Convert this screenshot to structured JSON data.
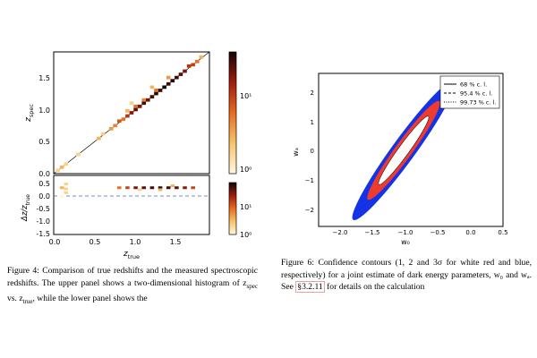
{
  "figure4": {
    "caption_label": "Figure 4:",
    "caption_text": "Comparison of true redshifts and the measured spectroscopic redshifts. The upper panel shows a two-dimensional histogram of z",
    "caption_spec_sub": "spec",
    "caption_text2": " vs. z",
    "caption_true_sub": "true",
    "caption_text3": ", while the lower panel shows the",
    "upper_ylabel_main": "z",
    "upper_ylabel_sub": "spec",
    "lower_ylabel": "Δz/z",
    "lower_ylabel_sub": "true",
    "xlabel_main": "z",
    "xlabel_sub": "true",
    "upper_yticks": [
      "0.0",
      "0.5",
      "1.0",
      "1.5"
    ],
    "lower_yticks": [
      "0.5",
      "0.0",
      "-0.5",
      "-1.0",
      "-1.5"
    ],
    "xticks": [
      "0.0",
      "0.5",
      "1.0",
      "1.5"
    ],
    "cbar_ticks": [
      "10¹",
      "10⁰"
    ],
    "cbar2_ticks": [
      "10¹",
      "10⁰"
    ]
  },
  "figure6": {
    "caption_label": "Figure 6:",
    "caption_text": "Confidence contours (1, 2 and 3σ for white red and blue, respectively) for a joint estimate of dark energy parameters, w₀ and wₐ. See",
    "caption_ref": "§3.2.11",
    "caption_text2": "for details on the calculation",
    "xlabel": "w₀",
    "ylabel": "wₐ",
    "xticks": [
      "−2.0",
      "−1.5",
      "−1.0",
      "−0.5",
      "0.0",
      "0.5"
    ],
    "yticks": [
      "2",
      "1",
      "0",
      "−1",
      "−2"
    ],
    "legend": [
      {
        "label": "68 % c. l.",
        "style": "solid"
      },
      {
        "label": "95.4 % c. l.",
        "style": "dashed"
      },
      {
        "label": "99.73 % c. l.",
        "style": "dotted"
      }
    ],
    "colors": {
      "inner": "#ffffff",
      "middle": "#ee3b2f",
      "outer": "#1433e6"
    }
  },
  "chart_data": [
    {
      "type": "heatmap",
      "panel": "upper",
      "xlabel": "z_true",
      "ylabel": "z_spec",
      "xlim": [
        0.0,
        1.9
      ],
      "ylim": [
        0.0,
        1.9
      ],
      "colorbar": {
        "scale": "log",
        "ticks": [
          "10⁰",
          "10¹"
        ]
      },
      "cells": [
        {
          "x": 0.05,
          "y": 0.05,
          "v": 2
        },
        {
          "x": 0.1,
          "y": 0.1,
          "v": 3
        },
        {
          "x": 0.15,
          "y": 0.15,
          "v": 2
        },
        {
          "x": 0.3,
          "y": 0.3,
          "v": 2
        },
        {
          "x": 0.55,
          "y": 0.55,
          "v": 3
        },
        {
          "x": 0.6,
          "y": 0.62,
          "v": 2
        },
        {
          "x": 0.7,
          "y": 0.7,
          "v": 4
        },
        {
          "x": 0.75,
          "y": 0.75,
          "v": 5
        },
        {
          "x": 0.8,
          "y": 0.82,
          "v": 8
        },
        {
          "x": 0.85,
          "y": 0.85,
          "v": 6
        },
        {
          "x": 0.9,
          "y": 0.9,
          "v": 12
        },
        {
          "x": 0.9,
          "y": 0.98,
          "v": 3
        },
        {
          "x": 0.95,
          "y": 0.95,
          "v": 18
        },
        {
          "x": 1.0,
          "y": 1.0,
          "v": 25
        },
        {
          "x": 1.0,
          "y": 1.05,
          "v": 6
        },
        {
          "x": 1.05,
          "y": 1.05,
          "v": 20
        },
        {
          "x": 1.1,
          "y": 1.1,
          "v": 30
        },
        {
          "x": 1.1,
          "y": 1.15,
          "v": 5
        },
        {
          "x": 1.15,
          "y": 1.15,
          "v": 22
        },
        {
          "x": 1.2,
          "y": 1.2,
          "v": 28
        },
        {
          "x": 1.25,
          "y": 1.25,
          "v": 35
        },
        {
          "x": 1.25,
          "y": 1.3,
          "v": 6
        },
        {
          "x": 1.3,
          "y": 1.3,
          "v": 30
        },
        {
          "x": 1.35,
          "y": 1.35,
          "v": 40
        },
        {
          "x": 1.4,
          "y": 1.4,
          "v": 32
        },
        {
          "x": 1.45,
          "y": 1.45,
          "v": 38
        },
        {
          "x": 1.5,
          "y": 1.5,
          "v": 30
        },
        {
          "x": 1.55,
          "y": 1.55,
          "v": 25
        },
        {
          "x": 1.6,
          "y": 1.6,
          "v": 20
        },
        {
          "x": 1.65,
          "y": 1.68,
          "v": 12
        },
        {
          "x": 1.7,
          "y": 1.7,
          "v": 10
        },
        {
          "x": 1.75,
          "y": 1.75,
          "v": 6
        },
        {
          "x": 1.8,
          "y": 1.82,
          "v": 3
        },
        {
          "x": 0.95,
          "y": 1.1,
          "v": 2
        },
        {
          "x": 1.2,
          "y": 1.35,
          "v": 3
        },
        {
          "x": 1.4,
          "y": 1.5,
          "v": 4
        }
      ]
    },
    {
      "type": "heatmap",
      "panel": "lower",
      "xlabel": "z_true",
      "ylabel": "Δz/z_true",
      "xlim": [
        0.0,
        1.9
      ],
      "ylim": [
        -1.9,
        0.5
      ],
      "colorbar": {
        "scale": "log",
        "ticks": [
          "10⁰",
          "10¹"
        ]
      },
      "cells": [
        {
          "x": 0.1,
          "y": 0.0,
          "v": 3
        },
        {
          "x": 0.15,
          "y": -0.05,
          "v": 2
        },
        {
          "x": 0.15,
          "y": -0.2,
          "v": 2
        },
        {
          "x": 0.1,
          "y": -0.35,
          "v": 1
        },
        {
          "x": 0.15,
          "y": 0.15,
          "v": 2
        },
        {
          "x": 0.8,
          "y": 0.0,
          "v": 6
        },
        {
          "x": 0.9,
          "y": 0.0,
          "v": 10
        },
        {
          "x": 1.0,
          "y": 0.0,
          "v": 20
        },
        {
          "x": 1.1,
          "y": 0.0,
          "v": 25
        },
        {
          "x": 1.2,
          "y": 0.0,
          "v": 30
        },
        {
          "x": 1.3,
          "y": 0.0,
          "v": 35
        },
        {
          "x": 1.4,
          "y": 0.0,
          "v": 30
        },
        {
          "x": 1.5,
          "y": 0.0,
          "v": 25
        },
        {
          "x": 1.6,
          "y": 0.0,
          "v": 18
        },
        {
          "x": 1.7,
          "y": 0.0,
          "v": 10
        },
        {
          "x": 1.3,
          "y": -0.08,
          "v": 3
        },
        {
          "x": 1.05,
          "y": -0.08,
          "v": 2
        },
        {
          "x": 1.45,
          "y": 0.08,
          "v": 3
        }
      ]
    },
    {
      "type": "contour",
      "xlabel": "w₀",
      "ylabel": "wₐ",
      "xlim": [
        -2.3,
        0.5
      ],
      "ylim": [
        -2.6,
        2.6
      ],
      "center": {
        "w0": -1.0,
        "wa": 0.0
      },
      "series": [
        {
          "name": "68 % c. l.",
          "half_extent_w0": [
            -1.28,
            -0.72
          ],
          "half_extent_wa": [
            -1.2,
            1.2
          ]
        },
        {
          "name": "95.4 % c. l.",
          "half_extent_w0": [
            -1.42,
            -0.55
          ],
          "half_extent_wa": [
            -1.6,
            1.6
          ]
        },
        {
          "name": "99.73 % c. l.",
          "half_extent_w0": [
            -1.6,
            -0.3
          ],
          "half_extent_wa": [
            -2.1,
            2.1
          ]
        }
      ]
    }
  ]
}
